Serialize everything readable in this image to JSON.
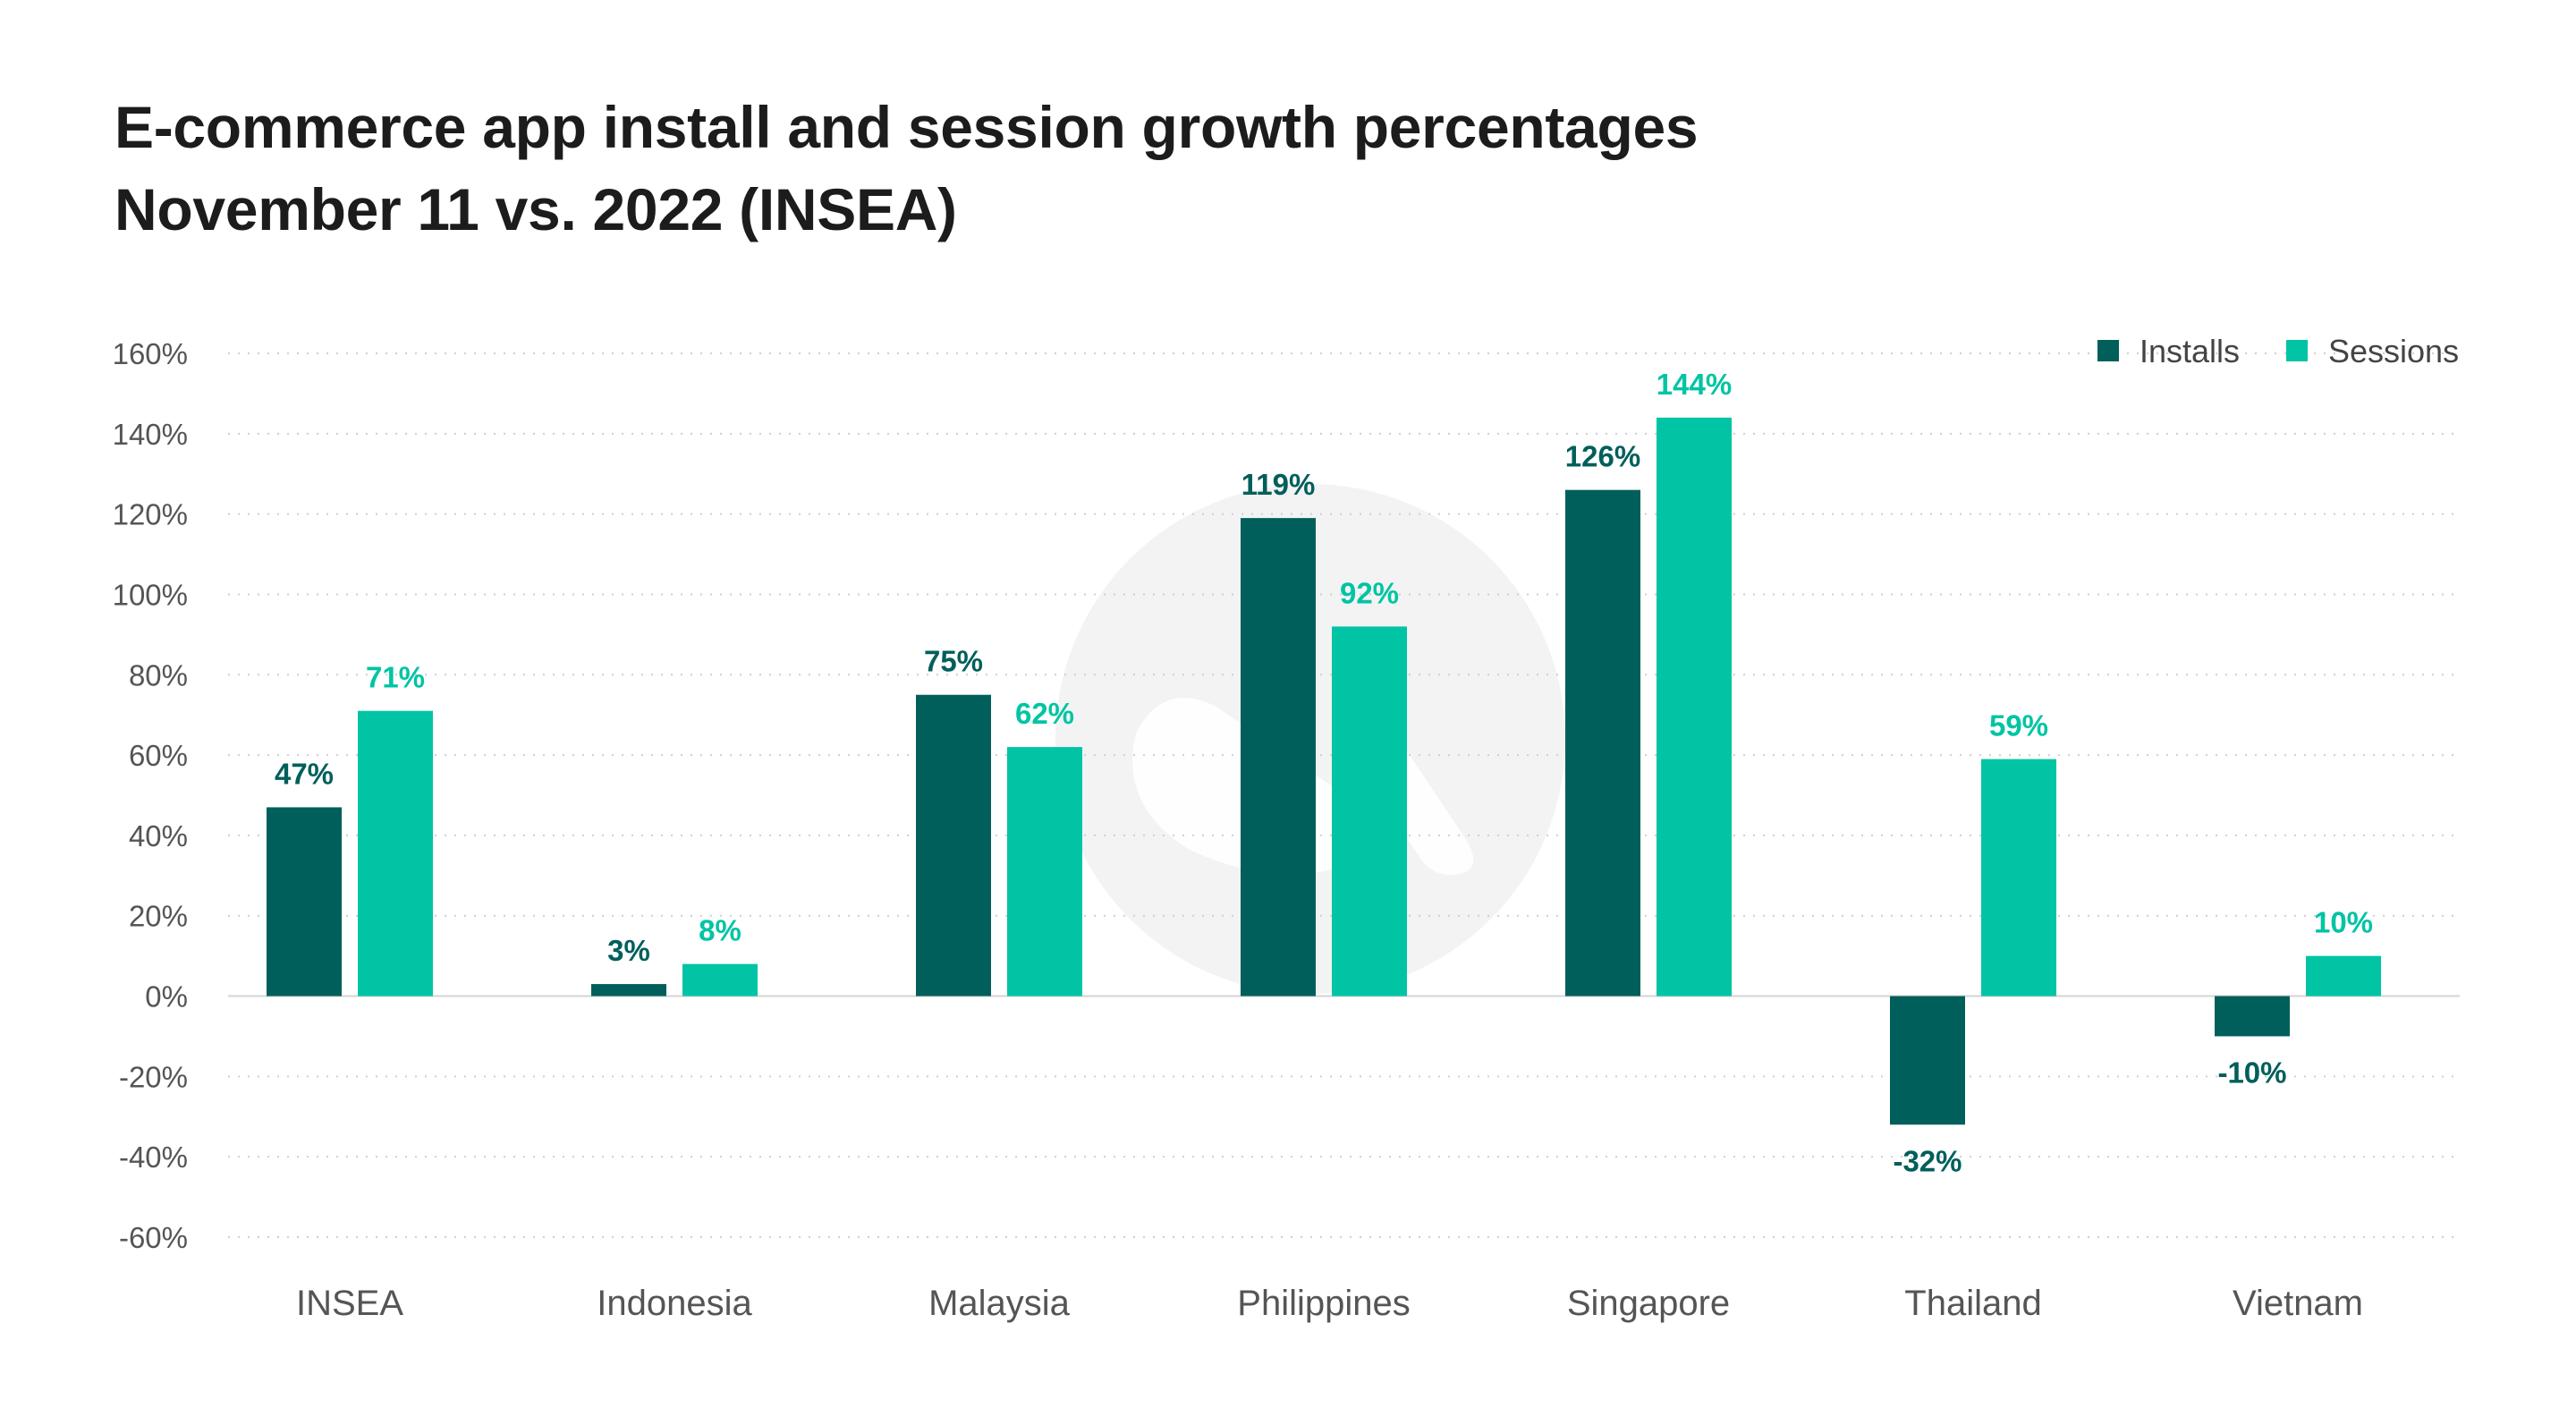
{
  "chart_data": {
    "type": "bar",
    "title": "E-commerce app install and session growth percentages",
    "subtitle": "November 11 vs. 2022 (INSEA)",
    "categories": [
      "INSEA",
      "Indonesia",
      "Malaysia",
      "Philippines",
      "Singapore",
      "Thailand",
      "Vietnam"
    ],
    "series": [
      {
        "name": "Installs",
        "color": "#005f5b",
        "values": [
          47,
          3,
          75,
          119,
          126,
          -32,
          -10
        ],
        "labels": [
          "47%",
          "3%",
          "75%",
          "119%",
          "126%",
          "-32%",
          "-10%"
        ]
      },
      {
        "name": "Sessions",
        "color": "#00c4a4",
        "values": [
          71,
          8,
          62,
          92,
          144,
          59,
          10
        ],
        "labels": [
          "71%",
          "8%",
          "62%",
          "92%",
          "144%",
          "59%",
          "10%"
        ]
      }
    ],
    "yticks": [
      160,
      140,
      120,
      100,
      80,
      60,
      40,
      20,
      0,
      -20,
      -40,
      -60
    ],
    "yticklabels": [
      "160%",
      "140%",
      "120%",
      "100%",
      "80%",
      "60%",
      "40%",
      "20%",
      "0%",
      "-20%",
      "-40%",
      "-60%"
    ],
    "ylim": [
      -60,
      160
    ],
    "grid": true,
    "legend_position": "top-right"
  }
}
